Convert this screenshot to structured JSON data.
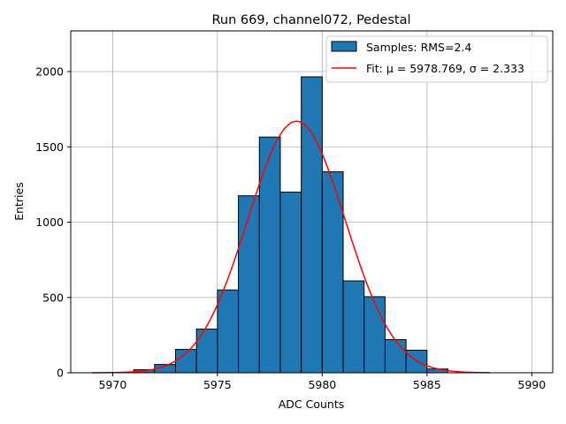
{
  "chart_data": {
    "type": "bar",
    "title": "Run 669, channel072, Pedestal",
    "xlabel": "ADC Counts",
    "ylabel": "Entries",
    "xlim": [
      5968,
      5991
    ],
    "ylim": [
      0,
      2270
    ],
    "xticks": [
      5970,
      5975,
      5980,
      5985,
      5990
    ],
    "yticks": [
      0,
      500,
      1000,
      1500,
      2000
    ],
    "grid": true,
    "legend_position": "top-right",
    "histogram": {
      "bin_edges": [
        5971,
        5972,
        5973,
        5974,
        5975,
        5976,
        5977,
        5978,
        5979,
        5980,
        5981,
        5982,
        5983,
        5984,
        5985,
        5986
      ],
      "counts": [
        20,
        55,
        155,
        290,
        550,
        1175,
        1565,
        1200,
        1965,
        1335,
        610,
        505,
        220,
        150,
        25
      ],
      "fill_color": "#1f77b4",
      "edge_color": "#000000"
    },
    "fit": {
      "mu": 5978.769,
      "sigma": 2.333,
      "amplitude": 1670,
      "x_range": [
        5969,
        5988
      ],
      "color": "#ff0000"
    },
    "legend": [
      {
        "label": "Samples: RMS=2.4",
        "kind": "patch"
      },
      {
        "label": "Fit: μ = 5978.769, σ = 2.333",
        "kind": "line"
      }
    ]
  }
}
